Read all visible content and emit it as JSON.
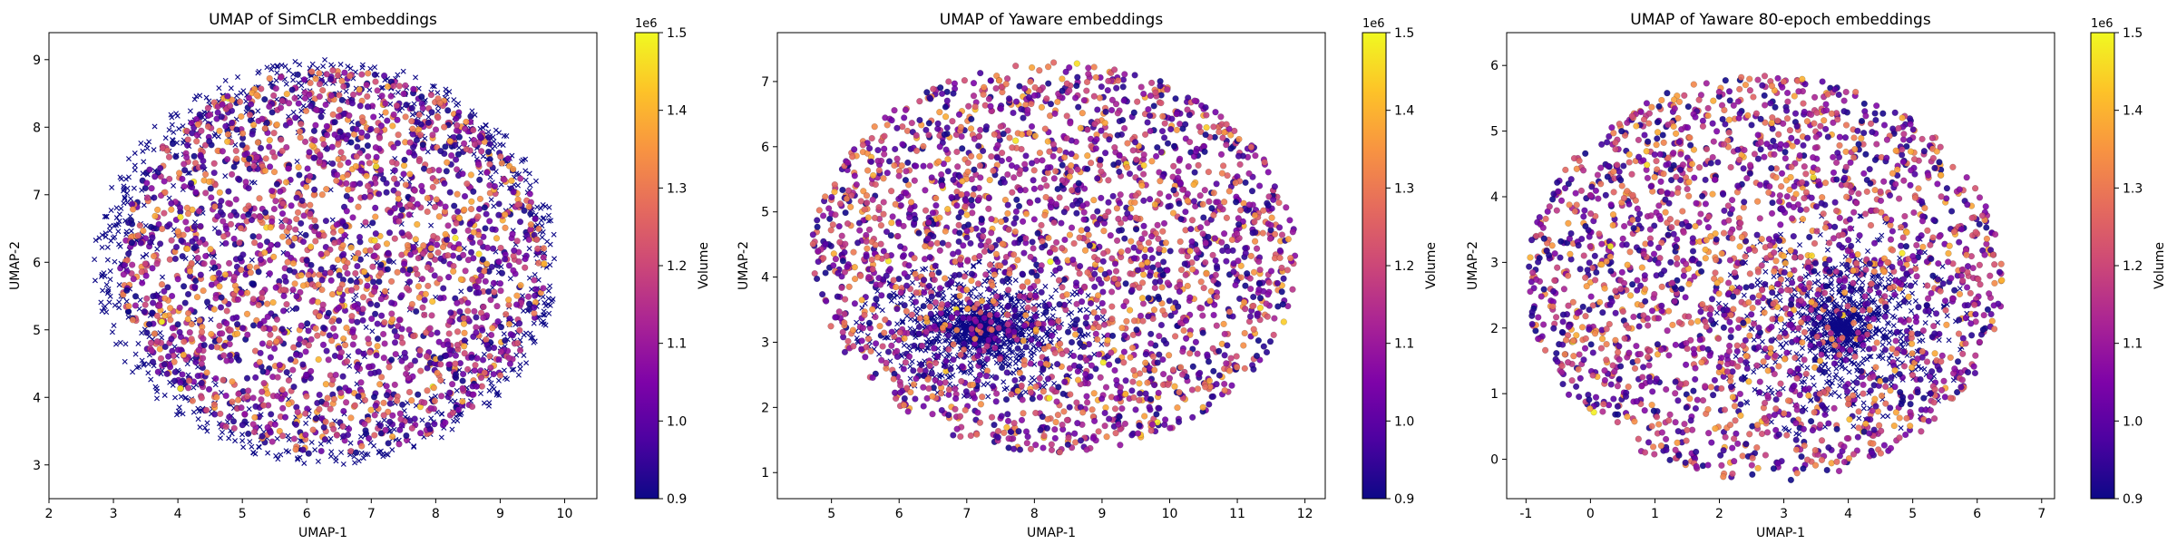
{
  "chart_data": [
    {
      "type": "scatter",
      "title": "UMAP of SimCLR embeddings",
      "xlabel": "UMAP-1",
      "ylabel": "UMAP-2",
      "xlim": [
        2,
        10.5
      ],
      "ylim": [
        2.5,
        9.4
      ],
      "xticks": [
        2,
        3,
        4,
        5,
        6,
        7,
        8,
        9,
        10
      ],
      "yticks": [
        3,
        4,
        5,
        6,
        7,
        8,
        9
      ],
      "colorbar": {
        "label": "Volume",
        "range": [
          900000,
          1500000
        ],
        "ticks": [
          0.9,
          1.0,
          1.1,
          1.2,
          1.3,
          1.4,
          1.5
        ],
        "offset_label": "1e6",
        "colormap": "plasma"
      },
      "series": [
        {
          "marker": "x",
          "color": "#0d0887",
          "cloud": {
            "shape": "ring",
            "center": [
              6.3,
              6.0
            ],
            "radius": [
              3.6,
              3.0
            ],
            "count": 900
          }
        },
        {
          "marker": "circle",
          "color_by": "Volume",
          "cloud": {
            "shape": "disc",
            "center": [
              6.4,
              6.0
            ],
            "radius": [
              3.3,
              2.85
            ],
            "count": 2300
          }
        }
      ]
    },
    {
      "type": "scatter",
      "title": "UMAP of Yaware embeddings",
      "xlabel": "UMAP-1",
      "ylabel": "UMAP-2",
      "xlim": [
        4.2,
        12.3
      ],
      "ylim": [
        0.6,
        7.75
      ],
      "xticks": [
        5,
        6,
        7,
        8,
        9,
        10,
        11,
        12
      ],
      "yticks": [
        1,
        2,
        3,
        4,
        5,
        6,
        7
      ],
      "colorbar": {
        "label": "Volume",
        "range": [
          900000,
          1500000
        ],
        "ticks": [
          0.9,
          1.0,
          1.1,
          1.2,
          1.3,
          1.4,
          1.5
        ],
        "offset_label": "1e6",
        "colormap": "plasma"
      },
      "series": [
        {
          "marker": "x",
          "color": "#0d0887",
          "cloud": {
            "shape": "cluster",
            "center": [
              7.2,
              3.2
            ],
            "radius": [
              1.6,
              0.9
            ],
            "count": 1100
          }
        },
        {
          "marker": "circle",
          "color_by": "Volume",
          "cloud": {
            "shape": "disc",
            "center": [
              8.3,
              4.3
            ],
            "radius": [
              3.6,
              3.0
            ],
            "count": 2500
          }
        }
      ]
    },
    {
      "type": "scatter",
      "title": "UMAP of Yaware 80-epoch embeddings",
      "xlabel": "UMAP-1",
      "ylabel": "UMAP-2",
      "xlim": [
        -1.3,
        7.2
      ],
      "ylim": [
        -0.6,
        6.5
      ],
      "xticks": [
        -1,
        0,
        1,
        2,
        3,
        4,
        5,
        6,
        7
      ],
      "yticks": [
        0,
        1,
        2,
        3,
        4,
        5,
        6
      ],
      "colorbar": {
        "label": "Volume",
        "range": [
          900000,
          1500000
        ],
        "ticks": [
          0.9,
          1.0,
          1.1,
          1.2,
          1.3,
          1.4,
          1.5
        ],
        "offset_label": "1e6",
        "colormap": "plasma"
      },
      "series": [
        {
          "marker": "x",
          "color": "#0d0887",
          "cloud": {
            "shape": "cluster",
            "center": [
              3.9,
              2.0
            ],
            "radius": [
              1.7,
              1.5
            ],
            "count": 900
          }
        },
        {
          "marker": "circle",
          "color_by": "Volume",
          "cloud": {
            "shape": "disc",
            "center": [
              2.7,
              2.75
            ],
            "radius": [
              3.7,
              3.1
            ],
            "count": 2300
          }
        }
      ]
    }
  ]
}
